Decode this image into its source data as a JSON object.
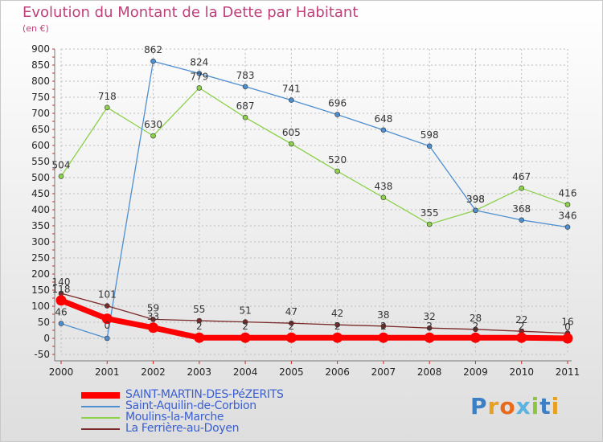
{
  "header": {
    "title": "Evolution du Montant de la Dette par Habitant",
    "subtitle": "(en €)"
  },
  "logo": {
    "letters": [
      "P",
      "r",
      "o",
      "x",
      "i",
      "t",
      "i"
    ],
    "colors": [
      "#3d7fc4",
      "#e8a020",
      "#e86a1a",
      "#5ab4e0",
      "#8cc63f",
      "#3d7fc4",
      "#e8a020"
    ]
  },
  "chart_data": {
    "type": "line",
    "title": "Evolution du Montant de la Dette par Habitant",
    "subtitle": "(en €)",
    "xlabel": "",
    "ylabel": "",
    "categories": [
      "2000",
      "2001",
      "2002",
      "2003",
      "2004",
      "2005",
      "2006",
      "2007",
      "2008",
      "2009",
      "2010",
      "2011"
    ],
    "ylim": [
      -50,
      900
    ],
    "yticks": [
      -50,
      0,
      50,
      100,
      150,
      200,
      250,
      300,
      350,
      400,
      450,
      500,
      550,
      600,
      650,
      700,
      750,
      800,
      850,
      900
    ],
    "grid": true,
    "legend_position": "bottom-left",
    "series": [
      {
        "name": "SAINT-MARTIN-DES-PéZERITS",
        "color": "#ff0000",
        "values": [
          118,
          61,
          33,
          2,
          2,
          2,
          2,
          2,
          2,
          2,
          2,
          0
        ],
        "labels": [
          "118",
          "",
          "33",
          "2",
          "2",
          "2",
          "2",
          "2",
          "2",
          "2",
          "2",
          "0"
        ]
      },
      {
        "name": "Saint-Aquilin-de-Corbion",
        "color": "#4d8fd0",
        "values": [
          46,
          0,
          862,
          824,
          783,
          741,
          696,
          648,
          598,
          398,
          368,
          346
        ],
        "labels": [
          "46",
          "0",
          "862",
          "824",
          "783",
          "741",
          "696",
          "648",
          "598",
          "398",
          "368",
          "346"
        ]
      },
      {
        "name": "Moulins-la-Marche",
        "color": "#8cd14a",
        "values": [
          504,
          718,
          630,
          779,
          687,
          605,
          520,
          438,
          355,
          398,
          467,
          416
        ],
        "labels": [
          "504",
          "718",
          "630",
          "779",
          "687",
          "605",
          "520",
          "438",
          "355",
          "398",
          "467",
          "416"
        ]
      },
      {
        "name": "La Ferrière-au-Doyen",
        "color": "#7b2a2a",
        "values": [
          140,
          101,
          59,
          55,
          51,
          47,
          42,
          38,
          32,
          28,
          22,
          16
        ],
        "labels": [
          "140",
          "101",
          "59",
          "55",
          "51",
          "47",
          "42",
          "38",
          "32",
          "28",
          "22",
          "16"
        ]
      }
    ]
  }
}
